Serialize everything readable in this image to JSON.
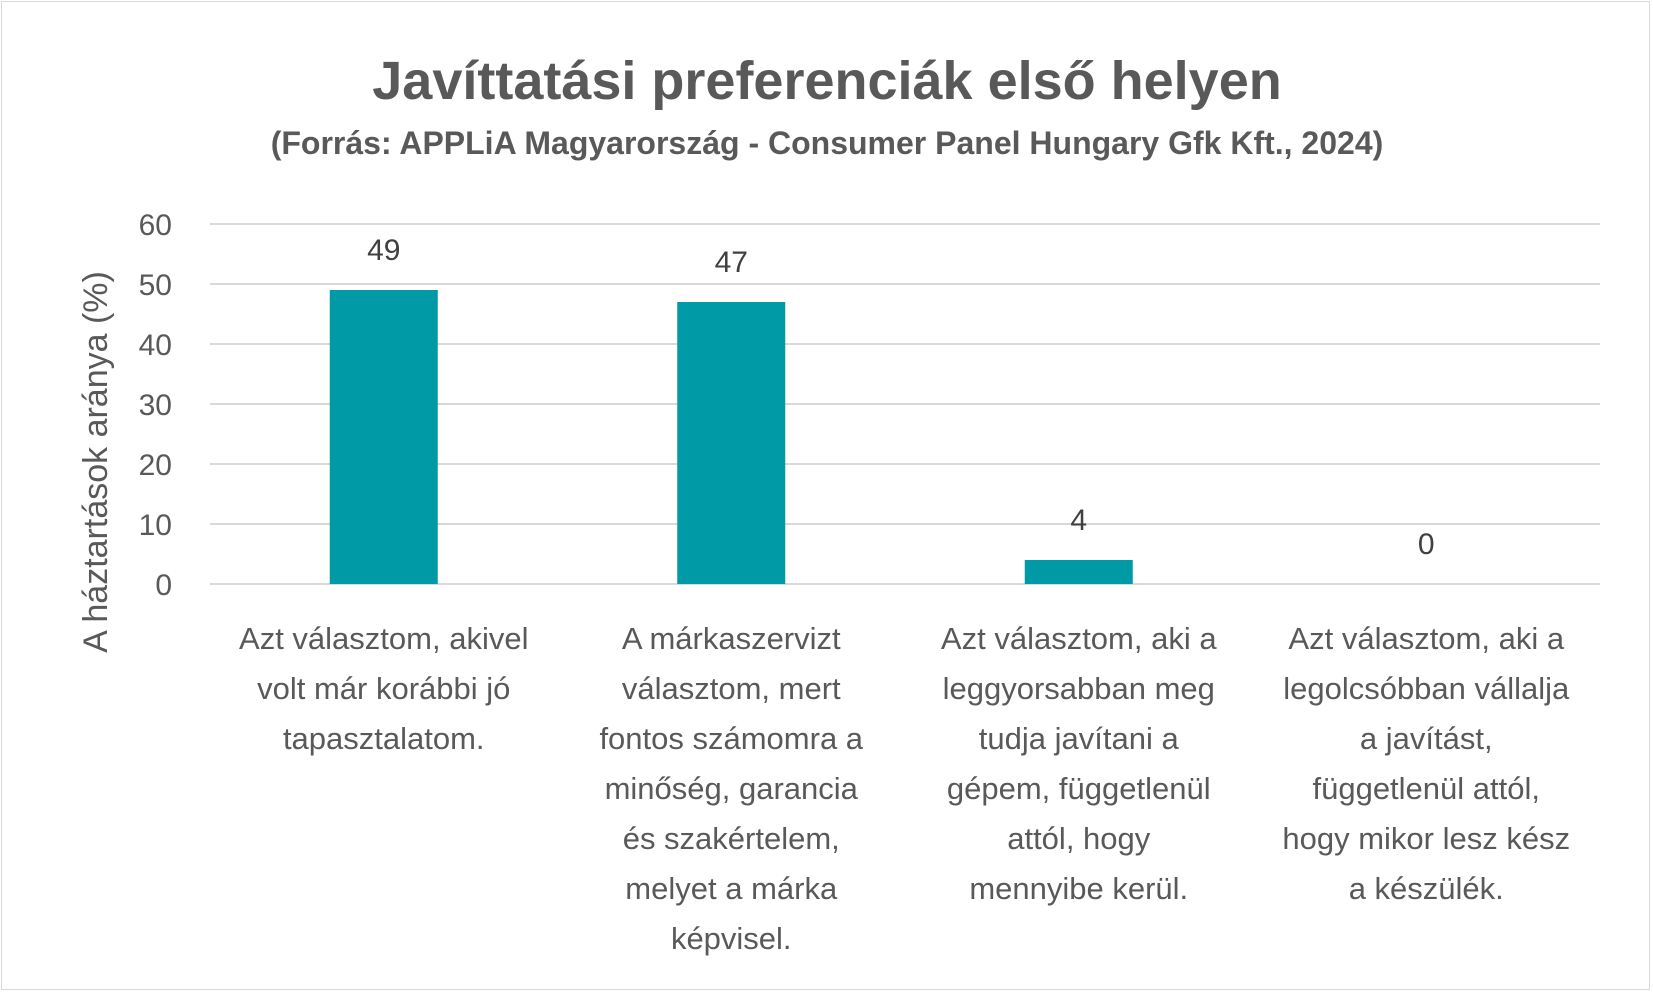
{
  "chart_data": {
    "type": "bar",
    "title": "Javíttatási preferenciák első helyen",
    "subtitle": "(Forrás: APPLiA Magyarország - Consumer Panel Hungary Gfk Kft., 2024)",
    "ylabel": "A háztartások aránya (%)",
    "xlabel": "",
    "ylim": [
      0,
      60
    ],
    "yticks": [
      0,
      10,
      20,
      30,
      40,
      50,
      60
    ],
    "grid": true,
    "bar_color": "#0099a6",
    "categories": [
      [
        "Azt választom, akivel",
        "volt már korábbi jó",
        "tapasztalatom."
      ],
      [
        "A márkaszervizt",
        "választom, mert",
        "fontos számomra a",
        "minőség, garancia",
        "és szakértelem,",
        "melyet a márka",
        "képvisel."
      ],
      [
        "Azt választom, aki a",
        "leggyorsabban meg",
        "tudja javítani a",
        "gépem, függetlenül",
        "attól, hogy",
        "mennyibe kerül."
      ],
      [
        "Azt választom, aki a",
        "legolcsóbban vállalja",
        "a javítást,",
        "függetlenül attól,",
        "hogy mikor lesz kész",
        "a készülék."
      ]
    ],
    "values": [
      49,
      47,
      4,
      0
    ],
    "data_labels": [
      "49",
      "47",
      "4",
      "0"
    ]
  }
}
